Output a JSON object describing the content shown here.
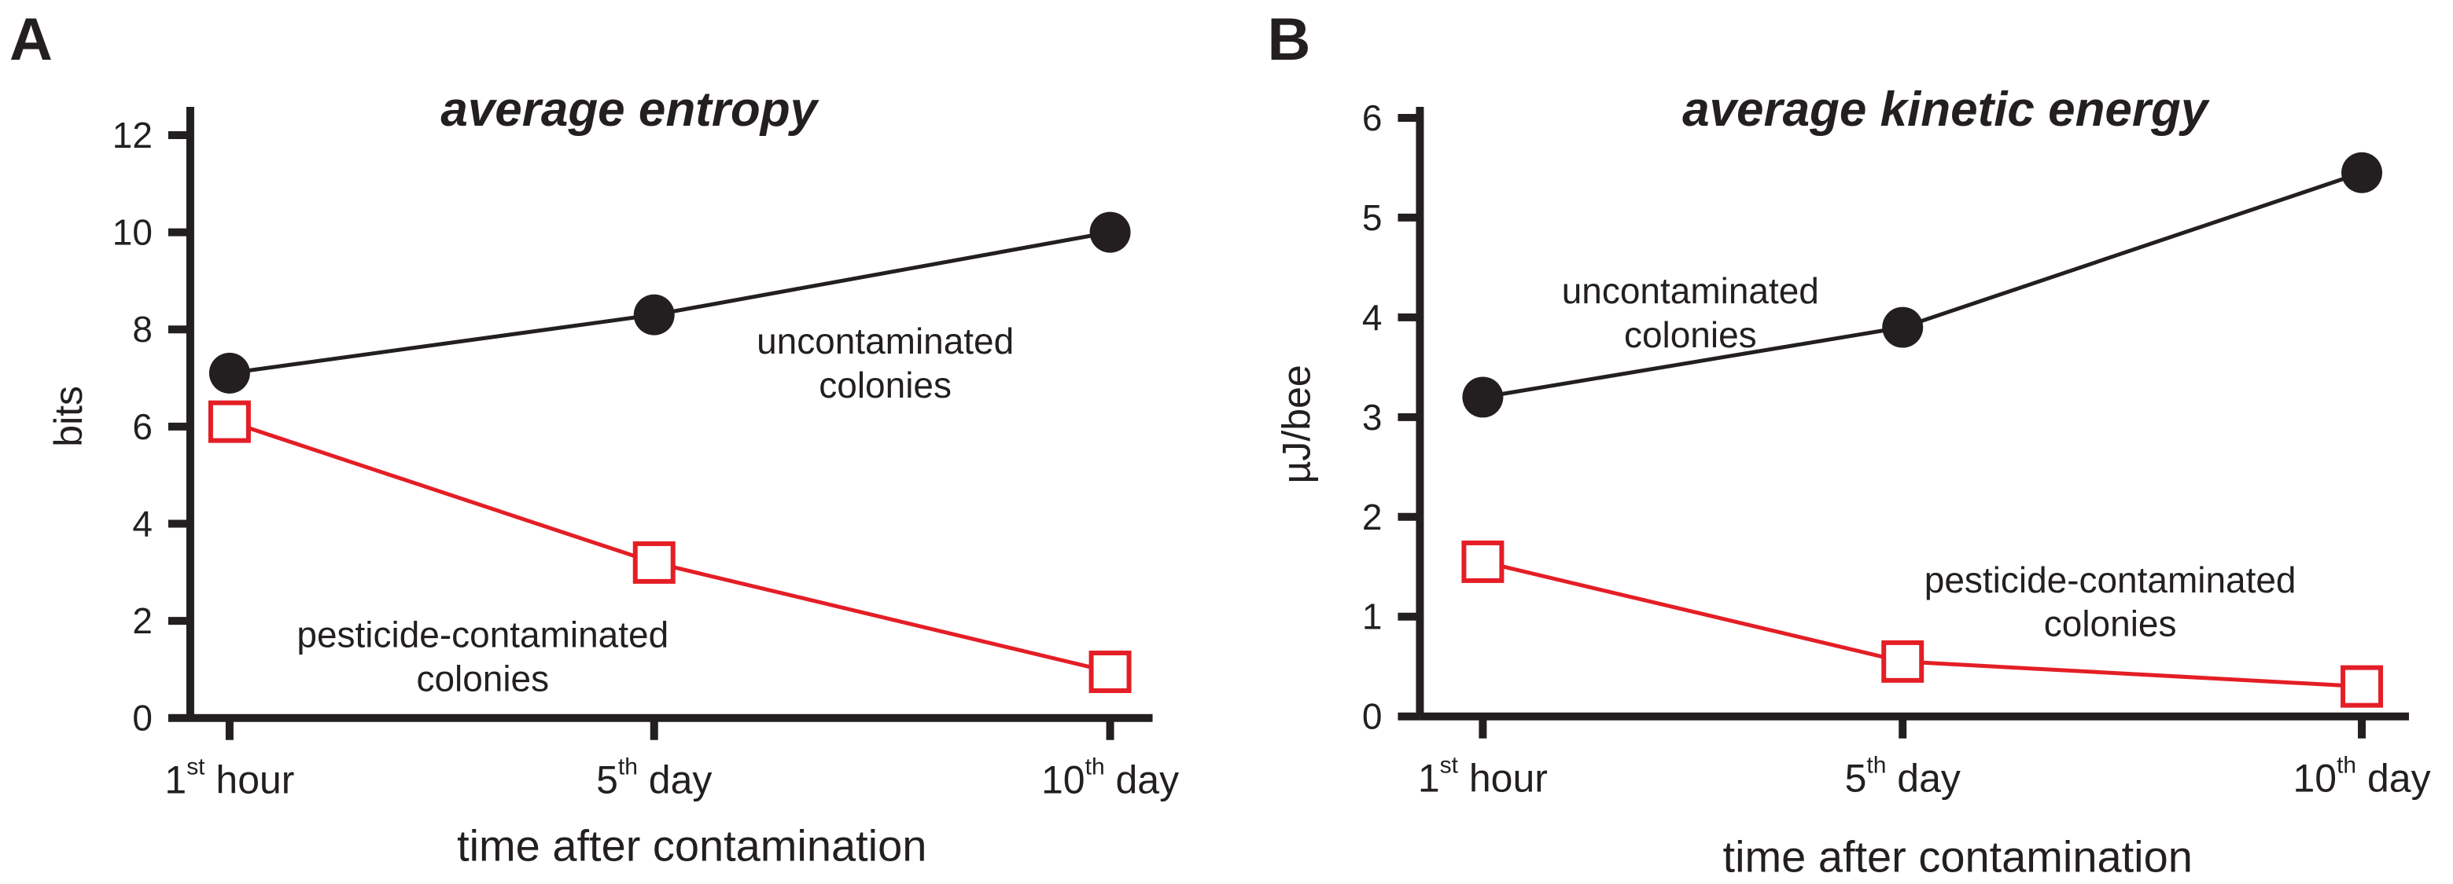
{
  "figure": {
    "panels": [
      {
        "panel_label": "A",
        "title": "average entropy",
        "ylabel": "bits",
        "xlabel": "time after contamination",
        "ytick_labels": [
          "0",
          "2",
          "4",
          "6",
          "8",
          "10",
          "12"
        ],
        "xtick_labels": [
          {
            "main": "1",
            "sup": "st",
            "rest": " hour"
          },
          {
            "main": "5",
            "sup": "th",
            "rest": " day"
          },
          {
            "main": "10",
            "sup": "th",
            "rest": " day"
          }
        ],
        "annotations": [
          {
            "lines": [
              "uncontaminated",
              "colonies"
            ],
            "color": "#231f20"
          },
          {
            "lines": [
              "pesticide-contaminated",
              "colonies"
            ],
            "color": "#e41e26"
          }
        ]
      },
      {
        "panel_label": "B",
        "title": "average kinetic energy",
        "ylabel": "µJ/bee",
        "xlabel": "time after contamination",
        "ytick_labels": [
          "0",
          "1",
          "2",
          "3",
          "4",
          "5",
          "6"
        ],
        "xtick_labels": [
          {
            "main": "1",
            "sup": "st",
            "rest": " hour"
          },
          {
            "main": "5",
            "sup": "th",
            "rest": " day"
          },
          {
            "main": "10",
            "sup": "th",
            "rest": " day"
          }
        ],
        "annotations": [
          {
            "lines": [
              "uncontaminated",
              "colonies"
            ],
            "color": "#231f20"
          },
          {
            "lines": [
              "pesticide-contaminated",
              "colonies"
            ],
            "color": "#e41e26"
          }
        ]
      }
    ]
  },
  "chart_data": [
    {
      "type": "line",
      "title": "average entropy",
      "xlabel": "time after contamination",
      "ylabel": "bits",
      "categories": [
        "1st hour",
        "5th day",
        "10th day"
      ],
      "ylim": [
        0,
        12
      ],
      "yticks": [
        0,
        2,
        4,
        6,
        8,
        10,
        12
      ],
      "grid": false,
      "series": [
        {
          "name": "uncontaminated colonies",
          "values": [
            7.1,
            8.3,
            10.0
          ],
          "color": "#231f20",
          "marker": "filled-circle"
        },
        {
          "name": "pesticide-contaminated colonies",
          "values": [
            6.1,
            3.2,
            0.95
          ],
          "color": "#e41e26",
          "marker": "open-square"
        }
      ]
    },
    {
      "type": "line",
      "title": "average kinetic energy",
      "xlabel": "time after contamination",
      "ylabel": "µJ/bee",
      "categories": [
        "1st hour",
        "5th day",
        "10th day"
      ],
      "ylim": [
        0,
        6
      ],
      "yticks": [
        0,
        1,
        2,
        3,
        4,
        5,
        6
      ],
      "grid": false,
      "series": [
        {
          "name": "uncontaminated colonies",
          "values": [
            3.2,
            3.9,
            5.45
          ],
          "color": "#231f20",
          "marker": "filled-circle"
        },
        {
          "name": "pesticide-contaminated colonies",
          "values": [
            1.55,
            0.55,
            0.3
          ],
          "color": "#e41e26",
          "marker": "open-square"
        }
      ]
    }
  ]
}
